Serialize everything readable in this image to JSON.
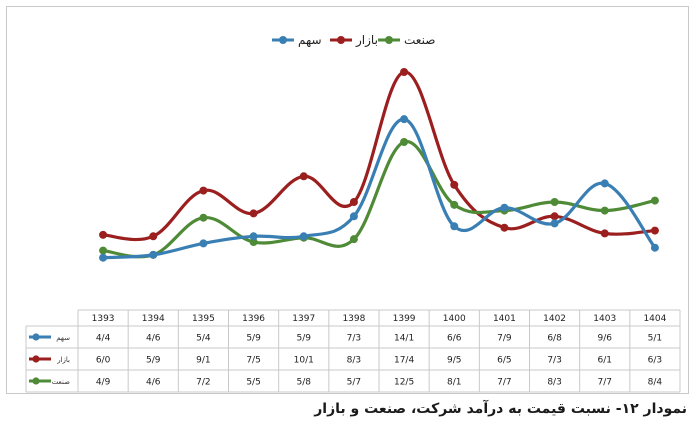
{
  "caption": "نمودار ۱۲- نسبت قیمت به درآمد شرکت، صنعت و بازار",
  "colors": {
    "sahm": "#3a7fb3",
    "bazar": "#9b1f1f",
    "sanat": "#4f8a37",
    "grid": "#c9c9c9"
  },
  "chart_data": {
    "type": "line",
    "categories": [
      "1393",
      "1394",
      "1395",
      "1396",
      "1397",
      "1398",
      "1399",
      "1400",
      "1401",
      "1402",
      "1403",
      "1404"
    ],
    "legend_position": "top-center",
    "grid": false,
    "ylim": [
      0,
      18
    ],
    "series": [
      {
        "key": "sahm",
        "name": "سهم",
        "color": "#3a7fb3",
        "values": [
          4.4,
          4.6,
          5.4,
          5.9,
          5.9,
          7.3,
          14.1,
          6.6,
          7.9,
          6.8,
          9.6,
          5.1
        ],
        "labels": [
          "4/4",
          "4/6",
          "5/4",
          "5/9",
          "5/9",
          "7/3",
          "14/1",
          "6/6",
          "7/9",
          "6/8",
          "9/6",
          "5/1"
        ]
      },
      {
        "key": "bazar",
        "name": "بازار",
        "color": "#9b1f1f",
        "values": [
          6.0,
          5.9,
          9.1,
          7.5,
          10.1,
          8.3,
          17.4,
          9.5,
          6.5,
          7.3,
          6.1,
          6.3
        ],
        "labels": [
          "6/0",
          "5/9",
          "9/1",
          "7/5",
          "10/1",
          "8/3",
          "17/4",
          "9/5",
          "6/5",
          "7/3",
          "6/1",
          "6/3"
        ]
      },
      {
        "key": "sanat",
        "name": "صنعت",
        "color": "#4f8a37",
        "values": [
          4.9,
          4.6,
          7.2,
          5.5,
          5.8,
          5.7,
          12.5,
          8.1,
          7.7,
          8.3,
          7.7,
          8.4
        ],
        "labels": [
          "4/9",
          "4/6",
          "7/2",
          "5/5",
          "5/8",
          "5/7",
          "12/5",
          "8/1",
          "7/7",
          "8/3",
          "7/7",
          "8/4"
        ]
      }
    ]
  }
}
